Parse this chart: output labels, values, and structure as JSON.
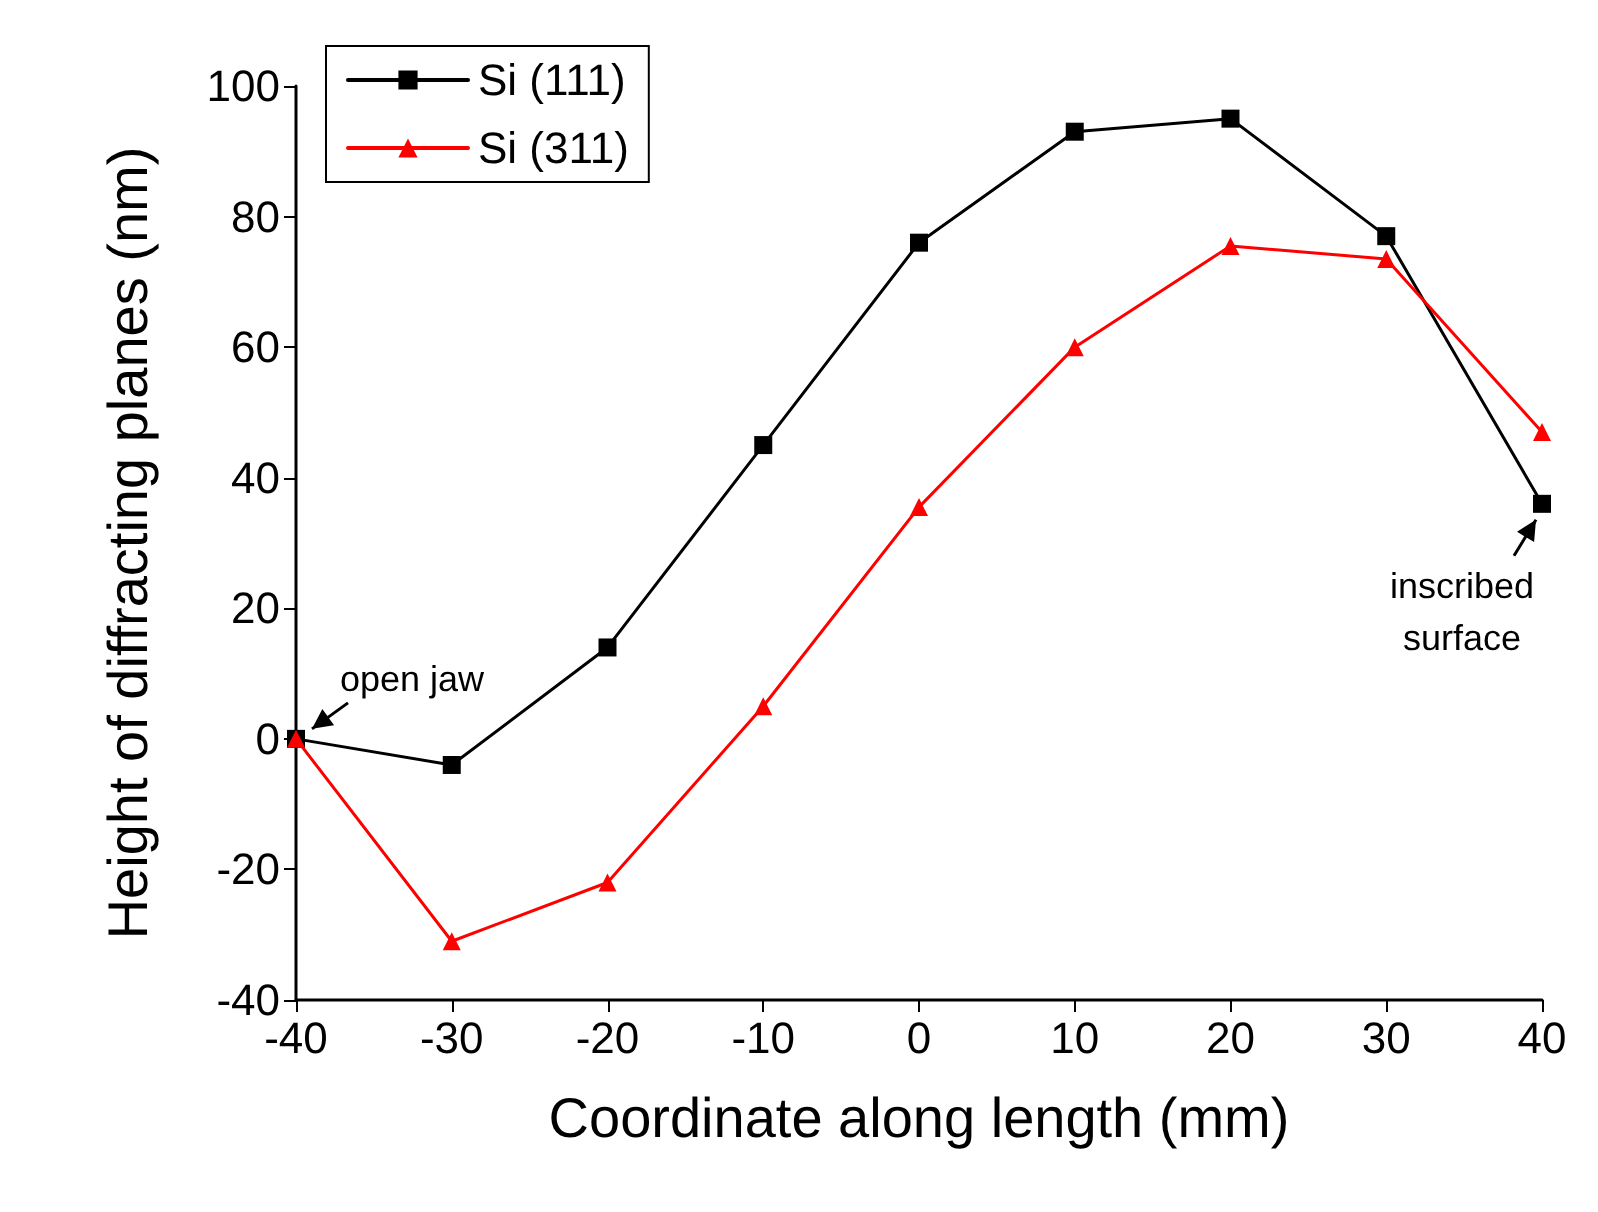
{
  "chart_data": {
    "type": "line",
    "xlabel": "Coordinate along length (mm)",
    "ylabel": "Height of diffracting planes (nm)",
    "x": [
      -40,
      -30,
      -20,
      -10,
      0,
      10,
      20,
      30,
      40
    ],
    "series": [
      {
        "name": "Si (111)",
        "color": "#000000",
        "marker": "square",
        "values": [
          0,
          -4,
          14,
          45,
          76,
          93,
          95,
          77,
          36
        ]
      },
      {
        "name": "Si (311)",
        "color": "#ff0000",
        "marker": "triangle",
        "values": [
          0,
          -31,
          -22,
          5,
          35.5,
          60,
          75.5,
          73.5,
          47
        ]
      }
    ],
    "xlim": [
      -40,
      40
    ],
    "xticks": [
      -40,
      -30,
      -20,
      -10,
      0,
      10,
      20,
      30,
      40
    ],
    "ylim": [
      -40,
      100
    ],
    "yticks": [
      -40,
      -20,
      0,
      20,
      40,
      60,
      80,
      100
    ],
    "grid": false,
    "legend": "top left",
    "line_style": "solid",
    "annotations": [
      {
        "text": "open jaw",
        "x": -40,
        "y": 0
      },
      {
        "text": "inscribed\nsurface",
        "x": 40,
        "y": 36
      }
    ]
  }
}
